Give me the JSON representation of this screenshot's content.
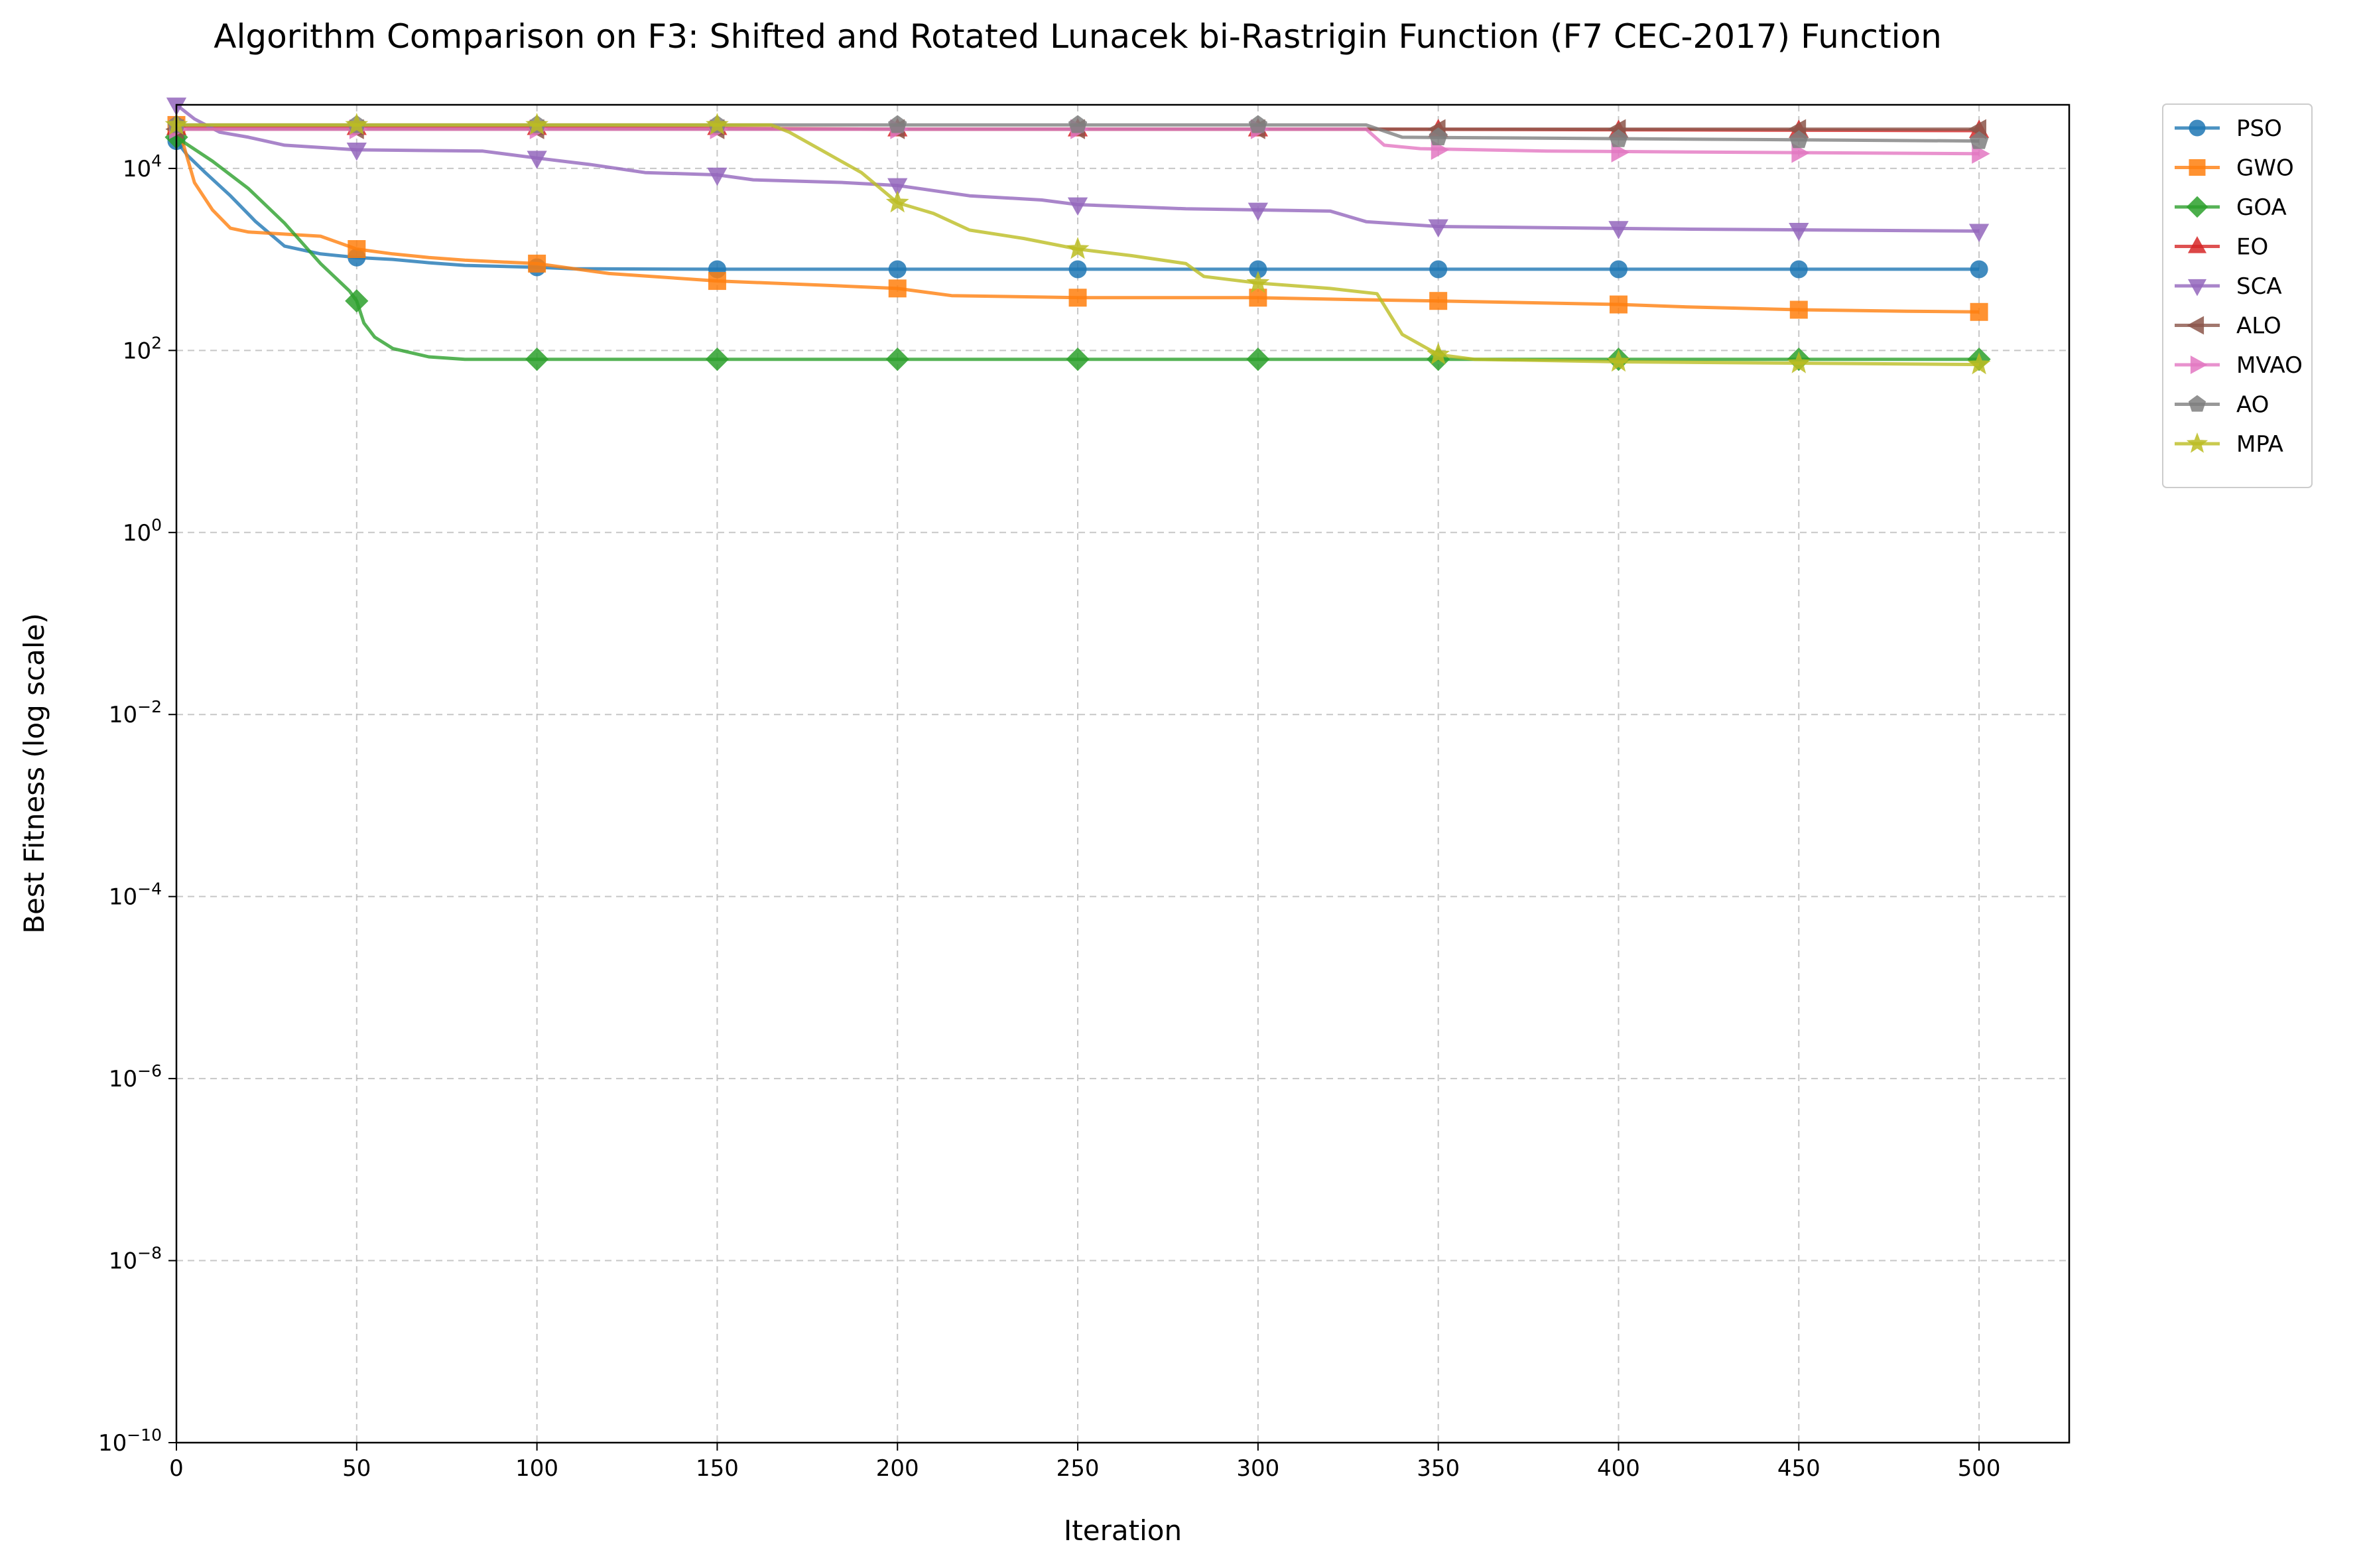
{
  "chart_data": {
    "type": "line",
    "title": "Algorithm Comparison on F3: Shifted and Rotated Lunacek bi-Rastrigin Function (F7 CEC-2017) Function",
    "xlabel": "Iteration",
    "ylabel": "Best Fitness (log scale)",
    "yscale": "log",
    "xlim": [
      0,
      525
    ],
    "ylim": [
      1e-10,
      50000
    ],
    "xticks": [
      "0",
      "50",
      "100",
      "150",
      "200",
      "250",
      "300",
      "350",
      "400",
      "450",
      "500"
    ],
    "yticks": [
      {
        "value": 1e-10,
        "base": "10",
        "exp": "−10"
      },
      {
        "value": 1e-08,
        "base": "10",
        "exp": "−8"
      },
      {
        "value": 1e-06,
        "base": "10",
        "exp": "−6"
      },
      {
        "value": 0.0001,
        "base": "10",
        "exp": "−4"
      },
      {
        "value": 0.01,
        "base": "10",
        "exp": "−2"
      },
      {
        "value": 1,
        "base": "10",
        "exp": "0"
      },
      {
        "value": 100,
        "base": "10",
        "exp": "2"
      },
      {
        "value": 10000,
        "base": "10",
        "exp": "4"
      }
    ],
    "grid": true,
    "legend_position": "outside right, top",
    "series": [
      {
        "name": "PSO",
        "color": "#1f77b4",
        "marker": "circle",
        "points": [
          [
            0,
            20000
          ],
          [
            3,
            14000
          ],
          [
            8,
            9000
          ],
          [
            15,
            5000
          ],
          [
            22,
            2600
          ],
          [
            30,
            1400
          ],
          [
            40,
            1150
          ],
          [
            50,
            1050
          ],
          [
            60,
            1000
          ],
          [
            70,
            920
          ],
          [
            80,
            860
          ],
          [
            100,
            820
          ],
          [
            110,
            790
          ],
          [
            150,
            780
          ],
          [
            500,
            780
          ]
        ],
        "markers": [
          [
            0,
            20000
          ],
          [
            50,
            1050
          ],
          [
            100,
            820
          ],
          [
            150,
            780
          ],
          [
            200,
            780
          ],
          [
            250,
            780
          ],
          [
            300,
            780
          ],
          [
            350,
            780
          ],
          [
            400,
            780
          ],
          [
            450,
            780
          ],
          [
            500,
            780
          ]
        ]
      },
      {
        "name": "GWO",
        "color": "#ff7f0e",
        "marker": "square",
        "points": [
          [
            0,
            30000
          ],
          [
            2,
            18000
          ],
          [
            5,
            7000
          ],
          [
            10,
            3500
          ],
          [
            15,
            2200
          ],
          [
            20,
            2000
          ],
          [
            40,
            1800
          ],
          [
            50,
            1300
          ],
          [
            60,
            1150
          ],
          [
            70,
            1050
          ],
          [
            80,
            980
          ],
          [
            100,
            900
          ],
          [
            120,
            700
          ],
          [
            150,
            580
          ],
          [
            180,
            520
          ],
          [
            200,
            480
          ],
          [
            215,
            400
          ],
          [
            250,
            380
          ],
          [
            300,
            380
          ],
          [
            330,
            360
          ],
          [
            350,
            350
          ],
          [
            400,
            320
          ],
          [
            420,
            300
          ],
          [
            450,
            280
          ],
          [
            480,
            270
          ],
          [
            500,
            265
          ]
        ],
        "markers": [
          [
            0,
            30000
          ],
          [
            50,
            1300
          ],
          [
            100,
            900
          ],
          [
            150,
            580
          ],
          [
            200,
            480
          ],
          [
            250,
            380
          ],
          [
            300,
            380
          ],
          [
            350,
            350
          ],
          [
            400,
            320
          ],
          [
            450,
            280
          ],
          [
            500,
            265
          ]
        ]
      },
      {
        "name": "GOA",
        "color": "#2ca02c",
        "marker": "diamond",
        "points": [
          [
            0,
            22000
          ],
          [
            10,
            12000
          ],
          [
            20,
            6000
          ],
          [
            30,
            2500
          ],
          [
            40,
            900
          ],
          [
            48,
            450
          ],
          [
            50,
            350
          ],
          [
            52,
            200
          ],
          [
            55,
            140
          ],
          [
            60,
            105
          ],
          [
            70,
            85
          ],
          [
            80,
            80
          ],
          [
            500,
            80
          ]
        ],
        "markers": [
          [
            0,
            22000
          ],
          [
            50,
            350
          ],
          [
            100,
            80
          ],
          [
            150,
            80
          ],
          [
            200,
            80
          ],
          [
            250,
            80
          ],
          [
            300,
            80
          ],
          [
            350,
            80
          ],
          [
            400,
            80
          ],
          [
            450,
            80
          ],
          [
            500,
            80
          ]
        ]
      },
      {
        "name": "EO",
        "color": "#d62728",
        "marker": "triangle-up",
        "points": [
          [
            0,
            28000
          ],
          [
            100,
            28000
          ],
          [
            200,
            27000
          ],
          [
            330,
            27000
          ],
          [
            500,
            26000
          ]
        ],
        "markers": [
          [
            0,
            28000
          ],
          [
            50,
            28000
          ],
          [
            100,
            28000
          ],
          [
            150,
            28000
          ],
          [
            200,
            27000
          ],
          [
            250,
            27000
          ],
          [
            300,
            27000
          ],
          [
            350,
            26500
          ],
          [
            400,
            26000
          ],
          [
            450,
            26000
          ],
          [
            500,
            26000
          ]
        ]
      },
      {
        "name": "SCA",
        "color": "#9467bd",
        "marker": "triangle-down",
        "points": [
          [
            0,
            50000
          ],
          [
            5,
            35000
          ],
          [
            12,
            25000
          ],
          [
            20,
            22000
          ],
          [
            30,
            18000
          ],
          [
            50,
            16000
          ],
          [
            85,
            15500
          ],
          [
            100,
            13000
          ],
          [
            115,
            11000
          ],
          [
            130,
            9000
          ],
          [
            150,
            8500
          ],
          [
            160,
            7500
          ],
          [
            185,
            7000
          ],
          [
            200,
            6500
          ],
          [
            220,
            5000
          ],
          [
            240,
            4500
          ],
          [
            250,
            4000
          ],
          [
            280,
            3600
          ],
          [
            320,
            3400
          ],
          [
            330,
            2600
          ],
          [
            350,
            2300
          ],
          [
            420,
            2150
          ],
          [
            500,
            2050
          ]
        ],
        "markers": [
          [
            0,
            50000
          ],
          [
            50,
            16000
          ],
          [
            100,
            13000
          ],
          [
            150,
            8500
          ],
          [
            200,
            6500
          ],
          [
            250,
            4000
          ],
          [
            300,
            3500
          ],
          [
            350,
            2300
          ],
          [
            400,
            2200
          ],
          [
            450,
            2100
          ],
          [
            500,
            2050
          ]
        ]
      },
      {
        "name": "ALO",
        "color": "#8c564b",
        "marker": "triangle-left",
        "points": [
          [
            0,
            27000
          ],
          [
            500,
            27000
          ]
        ],
        "markers": [
          [
            0,
            27000
          ],
          [
            50,
            27000
          ],
          [
            100,
            27000
          ],
          [
            150,
            27000
          ],
          [
            200,
            27000
          ],
          [
            250,
            27000
          ],
          [
            300,
            27000
          ],
          [
            350,
            27000
          ],
          [
            400,
            27000
          ],
          [
            450,
            27000
          ],
          [
            500,
            27000
          ]
        ]
      },
      {
        "name": "MVAO",
        "color": "#e377c2",
        "marker": "triangle-right",
        "points": [
          [
            0,
            27000
          ],
          [
            330,
            27000
          ],
          [
            335,
            18000
          ],
          [
            345,
            16500
          ],
          [
            380,
            15500
          ],
          [
            500,
            14500
          ]
        ],
        "markers": [
          [
            0,
            27000
          ],
          [
            50,
            27000
          ],
          [
            100,
            27000
          ],
          [
            150,
            27000
          ],
          [
            200,
            27000
          ],
          [
            250,
            27000
          ],
          [
            300,
            27000
          ],
          [
            350,
            16000
          ],
          [
            400,
            15000
          ],
          [
            450,
            14800
          ],
          [
            500,
            14500
          ]
        ]
      },
      {
        "name": "AO",
        "color": "#7f7f7f",
        "marker": "pentagon",
        "points": [
          [
            0,
            30000
          ],
          [
            330,
            30000
          ],
          [
            340,
            22000
          ],
          [
            500,
            20000
          ]
        ],
        "markers": [
          [
            0,
            30000
          ],
          [
            50,
            30000
          ],
          [
            100,
            30000
          ],
          [
            150,
            30000
          ],
          [
            200,
            30000
          ],
          [
            250,
            30000
          ],
          [
            300,
            30000
          ],
          [
            350,
            22000
          ],
          [
            400,
            21000
          ],
          [
            450,
            20500
          ],
          [
            500,
            20000
          ]
        ]
      },
      {
        "name": "MPA",
        "color": "#bcbd22",
        "marker": "star",
        "points": [
          [
            0,
            30000
          ],
          [
            165,
            30000
          ],
          [
            170,
            25000
          ],
          [
            180,
            15000
          ],
          [
            190,
            9000
          ],
          [
            200,
            4200
          ],
          [
            210,
            3200
          ],
          [
            220,
            2100
          ],
          [
            235,
            1700
          ],
          [
            250,
            1300
          ],
          [
            265,
            1100
          ],
          [
            280,
            900
          ],
          [
            285,
            650
          ],
          [
            300,
            550
          ],
          [
            320,
            480
          ],
          [
            333,
            420
          ],
          [
            340,
            150
          ],
          [
            350,
            90
          ],
          [
            360,
            80
          ],
          [
            400,
            75
          ],
          [
            500,
            70
          ]
        ],
        "markers": [
          [
            0,
            30000
          ],
          [
            50,
            30000
          ],
          [
            100,
            30000
          ],
          [
            150,
            30000
          ],
          [
            200,
            4200
          ],
          [
            250,
            1300
          ],
          [
            300,
            550
          ],
          [
            350,
            90
          ],
          [
            400,
            75
          ],
          [
            450,
            72
          ],
          [
            500,
            70
          ]
        ]
      }
    ]
  }
}
